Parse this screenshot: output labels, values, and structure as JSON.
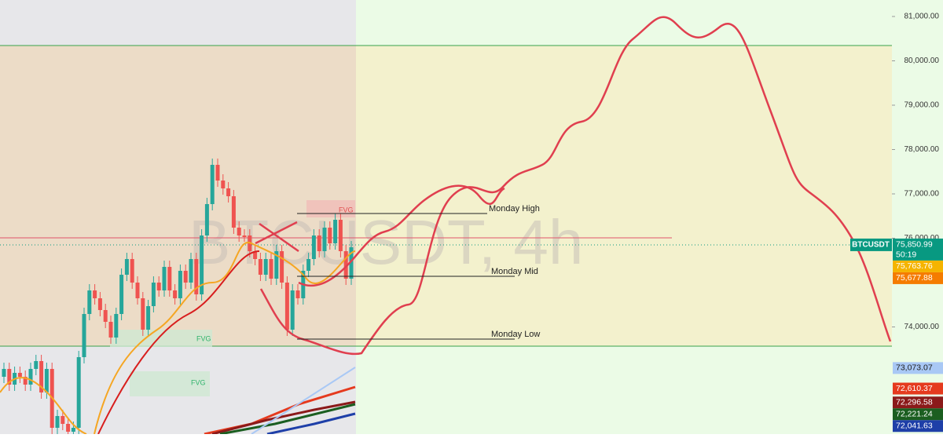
{
  "symbol_watermark": "BTCUSDT, 4h",
  "price_axis": {
    "ticks": [
      {
        "value": 81000,
        "label": "81,000.00"
      },
      {
        "value": 80000,
        "label": "80,000.00"
      },
      {
        "value": 79000,
        "label": "79,000.00"
      },
      {
        "value": 78000,
        "label": "78,000.00"
      },
      {
        "value": 77000,
        "label": "77,000.00"
      },
      {
        "value": 76000,
        "label": "76,000.00"
      },
      {
        "value": 74000,
        "label": "74,000.00"
      }
    ]
  },
  "annotations": [
    "Monday High",
    "Monday Mid",
    "Monday Low"
  ],
  "fvg_labels": [
    "FVG",
    "FVG",
    "FVG"
  ],
  "last_price": {
    "symbol": "BTCUSDT",
    "price": {
      "value": 75850.99,
      "label": "75,850.99"
    },
    "countdown": "50:19",
    "color": "#089981"
  },
  "price_tags": [
    {
      "value": 75763.76,
      "label": "75,763.76",
      "color": "#f5b400"
    },
    {
      "value": 75677.88,
      "label": "75,677.88",
      "color": "#f57c00"
    },
    {
      "value": 73073.07,
      "label": "73,073.07",
      "color": "#a9c8f5"
    },
    {
      "value": 72610.37,
      "label": "72,610.37",
      "color": "#e53a1e"
    },
    {
      "value": 72296.58,
      "label": "72,296.58",
      "color": "#8b1a1a"
    },
    {
      "value": 72221.24,
      "label": "72,221.24",
      "color": "#1b5e20"
    },
    {
      "value": 72041.63,
      "label": "72,041.63",
      "color": "#1e3fa8"
    }
  ]
}
